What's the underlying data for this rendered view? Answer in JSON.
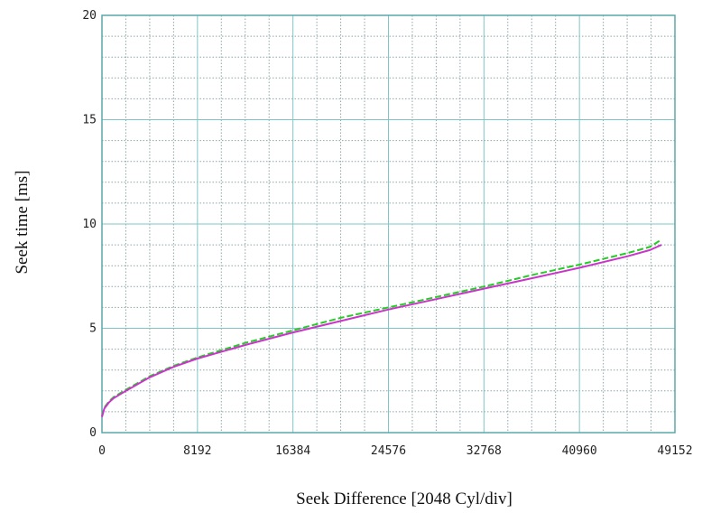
{
  "chart_data": {
    "type": "line",
    "title": "",
    "xlabel": "Seek Difference [2048 Cyl/div]",
    "ylabel": "Seek time [ms]",
    "xlim": [
      0,
      49152
    ],
    "ylim": [
      0,
      20
    ],
    "x_ticks": [
      0,
      8192,
      16384,
      24576,
      32768,
      40960,
      49152
    ],
    "y_ticks": [
      0,
      5,
      10,
      15,
      20
    ],
    "x_minor_step": 2048,
    "y_minor_step": 1,
    "grid": true,
    "legend": "none",
    "colors": {
      "grid_major": "#7fc7c7",
      "grid_minor": "#8fa6a6",
      "frame": "#5aa9a9"
    },
    "series": [
      {
        "color": "#22cc22",
        "dash": true,
        "x": [
          0,
          200,
          600,
          1000,
          2048,
          4096,
          6144,
          8192,
          12288,
          16384,
          20480,
          24576,
          28672,
          32768,
          36864,
          40960,
          45056,
          47000,
          48000
        ],
        "y": [
          0.8,
          1.2,
          1.5,
          1.7,
          2.05,
          2.7,
          3.2,
          3.6,
          4.3,
          4.9,
          5.5,
          6.0,
          6.5,
          7.0,
          7.55,
          8.05,
          8.6,
          8.9,
          9.25
        ]
      },
      {
        "color": "#cc33cc",
        "dash": false,
        "x": [
          0,
          200,
          600,
          1000,
          2048,
          4096,
          6144,
          8192,
          12288,
          16384,
          20480,
          24576,
          28672,
          32768,
          36864,
          40960,
          45056,
          47000,
          48000
        ],
        "y": [
          0.75,
          1.15,
          1.45,
          1.65,
          2.0,
          2.65,
          3.15,
          3.55,
          4.2,
          4.8,
          5.35,
          5.9,
          6.4,
          6.9,
          7.4,
          7.9,
          8.45,
          8.75,
          9.0
        ]
      }
    ]
  }
}
